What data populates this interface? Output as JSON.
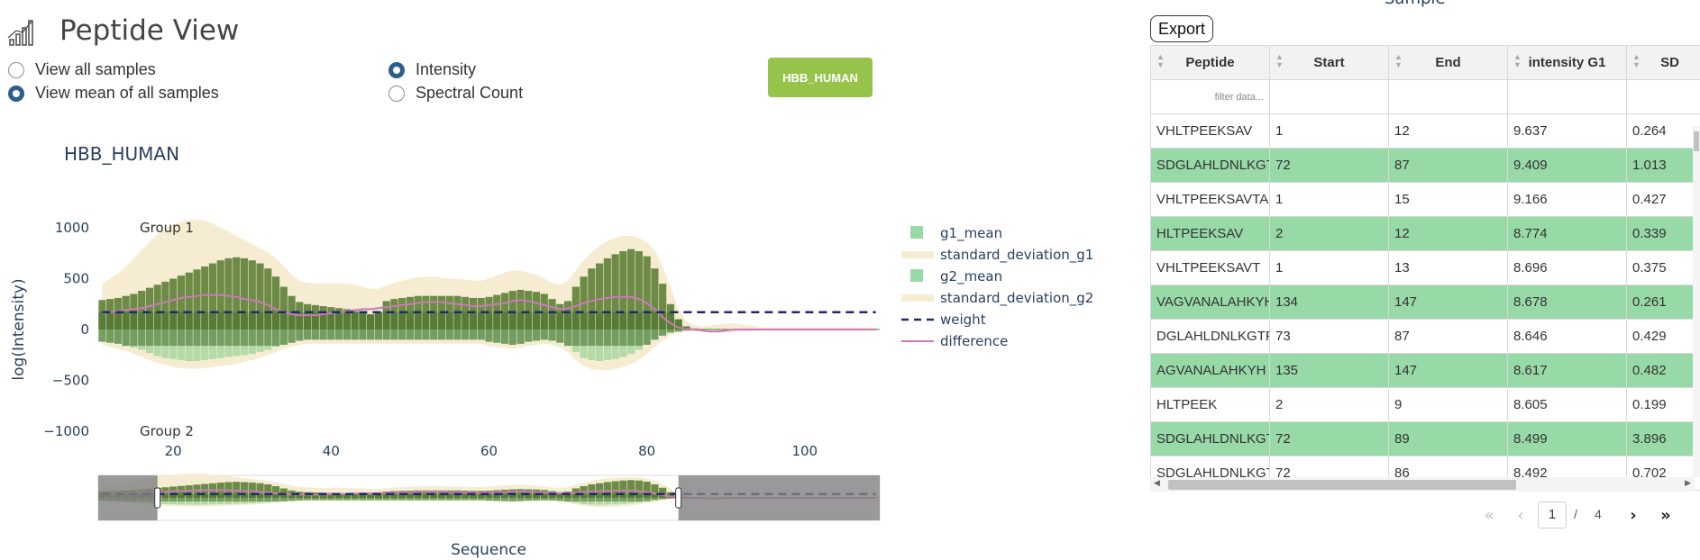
{
  "header": {
    "title": "Peptide View",
    "icon": "bar-chart-icon"
  },
  "view_options": [
    {
      "label": "View all samples",
      "selected": false
    },
    {
      "label": "View mean of all samples",
      "selected": true
    }
  ],
  "metric_options": [
    {
      "label": "Intensity",
      "selected": true
    },
    {
      "label": "Spectral Count",
      "selected": false
    }
  ],
  "protein_badge": "HBB_HUMAN",
  "chart": {
    "title": "HBB_HUMAN",
    "group1_label": "Group 1",
    "group2_label": "Group 2",
    "ylabel": "log(Intensity)",
    "xlabel": "Sequence",
    "legend": [
      "g1_mean",
      "standard_deviation_g1",
      "g2_mean",
      "standard_deviation_g2",
      "weight",
      "difference"
    ],
    "colors": {
      "g1_mean": "#557a2e",
      "g2_mean": "#9dd49a",
      "std": "#f5ecd2",
      "weight": "#1f2a6b",
      "difference": "#c97ab8"
    }
  },
  "chart_data": {
    "type": "bar",
    "title": "HBB_HUMAN",
    "xlabel": "Sequence",
    "ylabel": "log(Intensity)",
    "x_ticks": [
      20,
      40,
      60,
      80,
      100
    ],
    "y_ticks": [
      1000,
      500,
      0,
      -500,
      -1000
    ],
    "y_tick_labels": [
      "1000",
      "500",
      "0",
      "−500",
      "−1000"
    ],
    "xlim": [
      10.5,
      109.5
    ],
    "ylim": [
      -1000,
      1000
    ],
    "range_slider_selection": [
      18,
      84
    ],
    "x": [
      11,
      12,
      13,
      14,
      15,
      16,
      17,
      18,
      19,
      20,
      21,
      22,
      23,
      24,
      25,
      26,
      27,
      28,
      29,
      30,
      31,
      32,
      33,
      34,
      35,
      36,
      37,
      38,
      39,
      40,
      41,
      42,
      43,
      44,
      45,
      46,
      47,
      48,
      49,
      50,
      51,
      52,
      53,
      54,
      55,
      56,
      57,
      58,
      59,
      60,
      61,
      62,
      63,
      64,
      65,
      66,
      67,
      68,
      69,
      70,
      71,
      72,
      73,
      74,
      75,
      76,
      77,
      78,
      79,
      80,
      81,
      82,
      83,
      84,
      85,
      86,
      87,
      88,
      89,
      90,
      91,
      92,
      93,
      94,
      95,
      96,
      97,
      98,
      99,
      100,
      101,
      102,
      103,
      104,
      105,
      106,
      107,
      108,
      109
    ],
    "series": [
      {
        "name": "g1_mean",
        "values": [
          290,
          300,
          310,
          330,
          350,
          380,
          410,
          440,
          470,
          500,
          530,
          560,
          590,
          620,
          650,
          680,
          700,
          710,
          700,
          680,
          650,
          600,
          520,
          420,
          330,
          270,
          250,
          240,
          230,
          220,
          210,
          200,
          180,
          160,
          150,
          170,
          280,
          300,
          310,
          320,
          330,
          330,
          330,
          330,
          330,
          330,
          320,
          310,
          310,
          320,
          340,
          360,
          380,
          390,
          380,
          370,
          350,
          300,
          250,
          280,
          420,
          520,
          600,
          650,
          700,
          740,
          770,
          790,
          770,
          720,
          600,
          450,
          250,
          100,
          30,
          10,
          5,
          5,
          5,
          5,
          5,
          5,
          5,
          5,
          5,
          5,
          5,
          5,
          5,
          5,
          5,
          5,
          5,
          5,
          5,
          5,
          5,
          5,
          5
        ]
      },
      {
        "name": "g2_mean",
        "values": [
          -120,
          -130,
          -140,
          -160,
          -180,
          -200,
          -230,
          -260,
          -280,
          -290,
          -300,
          -310,
          -310,
          -300,
          -290,
          -280,
          -270,
          -260,
          -250,
          -240,
          -220,
          -200,
          -170,
          -150,
          -130,
          -110,
          -100,
          -100,
          -100,
          -100,
          -100,
          -100,
          -100,
          -100,
          -100,
          -100,
          -100,
          -100,
          -100,
          -100,
          -100,
          -100,
          -100,
          -100,
          -100,
          -100,
          -100,
          -100,
          -100,
          -120,
          -130,
          -140,
          -150,
          -140,
          -120,
          -110,
          -100,
          -110,
          -130,
          -160,
          -220,
          -280,
          -300,
          -310,
          -300,
          -290,
          -270,
          -240,
          -200,
          -150,
          -100,
          -60,
          -30,
          -20,
          -10,
          -5,
          -5,
          -5,
          -5,
          -5,
          -5,
          -5,
          -5,
          -5,
          -5,
          -5,
          -5,
          -5,
          -5,
          -5,
          -5,
          -5,
          -5,
          -5,
          -5,
          -5,
          -5,
          -5,
          -5
        ]
      },
      {
        "name": "standard_deviation_g1",
        "values": [
          450,
          500,
          550,
          620,
          700,
          780,
          860,
          930,
          990,
          1030,
          1060,
          1080,
          1080,
          1070,
          1040,
          1000,
          960,
          920,
          880,
          840,
          800,
          760,
          700,
          620,
          540,
          480,
          460,
          450,
          450,
          450,
          450,
          450,
          440,
          420,
          400,
          400,
          430,
          460,
          480,
          500,
          510,
          520,
          520,
          510,
          500,
          500,
          490,
          480,
          480,
          500,
          530,
          560,
          580,
          580,
          560,
          540,
          500,
          460,
          440,
          480,
          580,
          680,
          760,
          820,
          870,
          900,
          920,
          920,
          900,
          860,
          780,
          620,
          420,
          200,
          80,
          40,
          30,
          40,
          50,
          60,
          60,
          50,
          40,
          30,
          20,
          20,
          20,
          20,
          20,
          20,
          20,
          20,
          20,
          20,
          20,
          20,
          20,
          20,
          20
        ]
      },
      {
        "name": "standard_deviation_g2",
        "values": [
          -150,
          -170,
          -190,
          -210,
          -240,
          -270,
          -300,
          -330,
          -350,
          -370,
          -380,
          -385,
          -385,
          -380,
          -370,
          -360,
          -350,
          -340,
          -320,
          -300,
          -280,
          -250,
          -220,
          -190,
          -170,
          -150,
          -140,
          -140,
          -140,
          -140,
          -140,
          -140,
          -140,
          -140,
          -140,
          -140,
          -140,
          -140,
          -140,
          -140,
          -140,
          -140,
          -140,
          -140,
          -140,
          -140,
          -140,
          -140,
          -140,
          -160,
          -170,
          -180,
          -190,
          -180,
          -160,
          -150,
          -140,
          -150,
          -180,
          -220,
          -300,
          -360,
          -390,
          -400,
          -400,
          -390,
          -370,
          -340,
          -300,
          -240,
          -170,
          -110,
          -60,
          -30,
          -20,
          -15,
          -20,
          -25,
          -30,
          -30,
          -25,
          -20,
          -15,
          -10,
          -10,
          -10,
          -10,
          -10,
          -10,
          -10,
          -10,
          -10,
          -10,
          -10,
          -10,
          -10,
          -10,
          -10,
          -10
        ]
      },
      {
        "name": "weight",
        "values": [
          170,
          170,
          170,
          170,
          170,
          170,
          170,
          170,
          170,
          170,
          170,
          170,
          170,
          170,
          170,
          170,
          170,
          170,
          170,
          170,
          170,
          170,
          170,
          170,
          170,
          170,
          170,
          170,
          170,
          170,
          170,
          170,
          170,
          170,
          170,
          170,
          170,
          170,
          170,
          170,
          170,
          170,
          170,
          170,
          170,
          170,
          170,
          170,
          170,
          170,
          170,
          170,
          170,
          170,
          170,
          170,
          170,
          170,
          170,
          170,
          170,
          170,
          170,
          170,
          170,
          170,
          170,
          170,
          170,
          170,
          170,
          170,
          170,
          170,
          170,
          170,
          170,
          170,
          170,
          170,
          170,
          170,
          170,
          170,
          170,
          170,
          170,
          170,
          170,
          170,
          170,
          170,
          170,
          170,
          170,
          170,
          170,
          170,
          170
        ]
      },
      {
        "name": "difference",
        "values": [
          160,
          170,
          180,
          190,
          200,
          210,
          230,
          250,
          270,
          290,
          310,
          320,
          330,
          340,
          340,
          340,
          330,
          320,
          300,
          290,
          270,
          240,
          200,
          170,
          150,
          140,
          140,
          140,
          150,
          160,
          170,
          180,
          190,
          200,
          200,
          210,
          220,
          230,
          240,
          250,
          260,
          270,
          270,
          270,
          260,
          250,
          240,
          230,
          230,
          240,
          250,
          260,
          280,
          290,
          280,
          260,
          240,
          220,
          200,
          210,
          230,
          260,
          280,
          300,
          310,
          320,
          320,
          320,
          300,
          260,
          200,
          120,
          60,
          20,
          5,
          0,
          -10,
          -20,
          -20,
          -10,
          0,
          0,
          0,
          0,
          0,
          0,
          0,
          0,
          0,
          0,
          0,
          0,
          0,
          0,
          0,
          0,
          0,
          0,
          0
        ]
      }
    ]
  },
  "table": {
    "title": "Sample",
    "export_label": "Export",
    "filter_placeholder": "filter data...",
    "columns": [
      "Peptide",
      "Start",
      "End",
      "intensity G1",
      "SD"
    ],
    "rows": [
      {
        "cells": [
          "VHLTPEEKSAV",
          "1",
          "12",
          "9.637",
          "0.264"
        ],
        "highlight": false
      },
      {
        "cells": [
          "SDGLAHLDNLKGTF",
          "72",
          "87",
          "9.409",
          "1.013"
        ],
        "highlight": true
      },
      {
        "cells": [
          "VHLTPEEKSAVTAL",
          "1",
          "15",
          "9.166",
          "0.427"
        ],
        "highlight": false
      },
      {
        "cells": [
          "HLTPEEKSAV",
          "2",
          "12",
          "8.774",
          "0.339"
        ],
        "highlight": true
      },
      {
        "cells": [
          "VHLTPEEKSAVT",
          "1",
          "13",
          "8.696",
          "0.375"
        ],
        "highlight": false
      },
      {
        "cells": [
          "VAGVANALAHKYH",
          "134",
          "147",
          "8.678",
          "0.261"
        ],
        "highlight": true
      },
      {
        "cells": [
          "DGLAHLDNLKGTFA",
          "73",
          "87",
          "8.646",
          "0.429"
        ],
        "highlight": false
      },
      {
        "cells": [
          "AGVANALAHKYH",
          "135",
          "147",
          "8.617",
          "0.482"
        ],
        "highlight": true
      },
      {
        "cells": [
          "HLTPEEK",
          "2",
          "9",
          "8.605",
          "0.199"
        ],
        "highlight": false
      },
      {
        "cells": [
          "SDGLAHLDNLKGTF",
          "72",
          "89",
          "8.499",
          "3.896"
        ],
        "highlight": true
      },
      {
        "cells": [
          "SDGLAHLDNLKGTF",
          "72",
          "86",
          "8.492",
          "0.702"
        ],
        "highlight": false
      }
    ]
  },
  "pagination": {
    "current_page": "1",
    "separator": "/",
    "total_pages": "4",
    "first_icon": "«",
    "prev_icon": "‹",
    "next_icon": "›",
    "last_icon": "»"
  }
}
